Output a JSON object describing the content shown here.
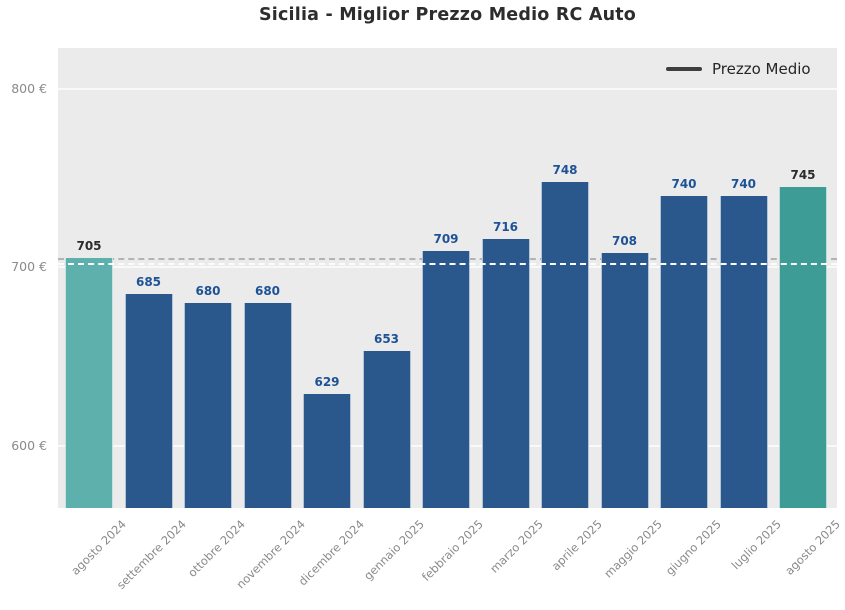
{
  "chart_data": {
    "type": "bar",
    "title": "Sicilia - Miglior Prezzo Medio RC Auto",
    "categories": [
      "agosto 2024",
      "settembre 2024",
      "ottobre 2024",
      "novembre 2024",
      "dicembre 2024",
      "gennaio 2025",
      "febbraio 2025",
      "marzo 2025",
      "aprile 2025",
      "maggio 2025",
      "giugno 2025",
      "luglio 2025",
      "agosto 2025"
    ],
    "values": [
      705,
      685,
      680,
      680,
      629,
      653,
      709,
      716,
      748,
      708,
      740,
      740,
      745
    ],
    "xlabel": "",
    "ylabel": "",
    "currency": "€",
    "ylim": [
      565,
      823
    ],
    "grid": true,
    "y_ticks": [
      {
        "value": 800,
        "label": "800 €"
      },
      {
        "value": 700,
        "label": "700 €"
      },
      {
        "value": 600,
        "label": "600 €"
      }
    ],
    "reference_line": {
      "value": 703,
      "label": "Prezzo Medio",
      "style": "dashed"
    },
    "legend": {
      "label": "Prezzo Medio",
      "position": "top-right"
    },
    "highlight_indices": [
      0,
      12
    ],
    "colors": {
      "bar_default": "#2a578c",
      "bar_first": "#5eb0ad",
      "bar_last": "#3d9d96",
      "value_label_default": "#1d5296",
      "value_label_highlight": "#2b2b2b",
      "plot_background": "#ebebeb",
      "gridline": "#f9f9f9",
      "tick_label": "#8a8a8a",
      "title": "#2d2d2d",
      "legend_line": "#3f3f3f",
      "legend_text": "#262626",
      "ref_line_gray": "#b3b3b3",
      "ref_line_white": "#fcfcfc"
    }
  }
}
